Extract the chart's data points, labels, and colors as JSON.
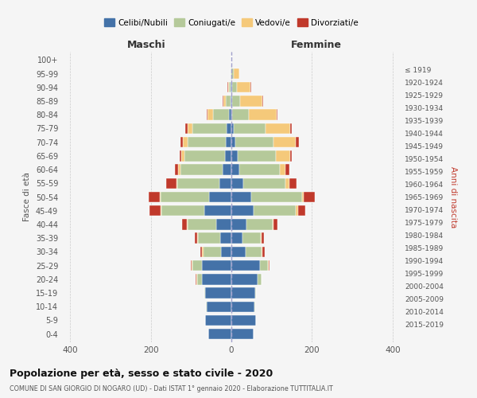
{
  "age_groups": [
    "0-4",
    "5-9",
    "10-14",
    "15-19",
    "20-24",
    "25-29",
    "30-34",
    "35-39",
    "40-44",
    "45-49",
    "50-54",
    "55-59",
    "60-64",
    "65-69",
    "70-74",
    "75-79",
    "80-84",
    "85-89",
    "90-94",
    "95-99",
    "100+"
  ],
  "birth_years": [
    "2015-2019",
    "2010-2014",
    "2005-2009",
    "2000-2004",
    "1995-1999",
    "1990-1994",
    "1985-1989",
    "1980-1984",
    "1975-1979",
    "1970-1974",
    "1965-1969",
    "1960-1964",
    "1955-1959",
    "1950-1954",
    "1945-1949",
    "1940-1944",
    "1935-1939",
    "1930-1934",
    "1925-1929",
    "1920-1924",
    "≤ 1919"
  ],
  "male": {
    "celibi": [
      58,
      65,
      62,
      65,
      72,
      72,
      25,
      28,
      38,
      68,
      55,
      29,
      22,
      16,
      14,
      12,
      5,
      2,
      1,
      0,
      0
    ],
    "coniugati": [
      0,
      0,
      2,
      2,
      12,
      25,
      45,
      55,
      70,
      105,
      120,
      105,
      105,
      100,
      95,
      85,
      40,
      12,
      5,
      2,
      0
    ],
    "vedovi": [
      0,
      0,
      0,
      0,
      2,
      2,
      2,
      2,
      2,
      2,
      2,
      2,
      5,
      8,
      12,
      12,
      15,
      5,
      2,
      0,
      0
    ],
    "divorziati": [
      0,
      0,
      0,
      0,
      2,
      2,
      5,
      5,
      12,
      28,
      28,
      25,
      8,
      5,
      5,
      5,
      2,
      2,
      2,
      0,
      0
    ]
  },
  "female": {
    "nubili": [
      55,
      62,
      58,
      60,
      65,
      70,
      35,
      28,
      38,
      55,
      50,
      30,
      20,
      15,
      10,
      5,
      2,
      2,
      1,
      0,
      0
    ],
    "coniugate": [
      0,
      0,
      2,
      2,
      10,
      20,
      40,
      45,
      65,
      105,
      125,
      105,
      100,
      95,
      95,
      80,
      42,
      20,
      12,
      5,
      0
    ],
    "vedove": [
      0,
      0,
      0,
      0,
      0,
      2,
      2,
      2,
      2,
      5,
      5,
      8,
      15,
      35,
      55,
      60,
      68,
      55,
      35,
      15,
      0
    ],
    "divorziate": [
      0,
      0,
      0,
      0,
      0,
      2,
      5,
      5,
      10,
      18,
      28,
      18,
      8,
      5,
      8,
      5,
      2,
      2,
      2,
      0,
      0
    ]
  },
  "colors": {
    "celibi": "#4472a8",
    "coniugati": "#b5c99a",
    "vedovi": "#f5c97a",
    "divorziati": "#c0392b"
  },
  "xlim": 420,
  "title": "Popolazione per età, sesso e stato civile - 2020",
  "subtitle": "COMUNE DI SAN GIORGIO DI NOGARO (UD) - Dati ISTAT 1° gennaio 2020 - Elaborazione TUTTITALIA.IT",
  "ylabel": "Fasce di età",
  "ylabel2": "Anni di nascita",
  "xlabel_left": "Maschi",
  "xlabel_right": "Femmine",
  "legend_labels": [
    "Celibi/Nubili",
    "Coniugati/e",
    "Vedovi/e",
    "Divorziati/e"
  ],
  "bg_color": "#f5f5f5",
  "grid_color": "#cccccc"
}
